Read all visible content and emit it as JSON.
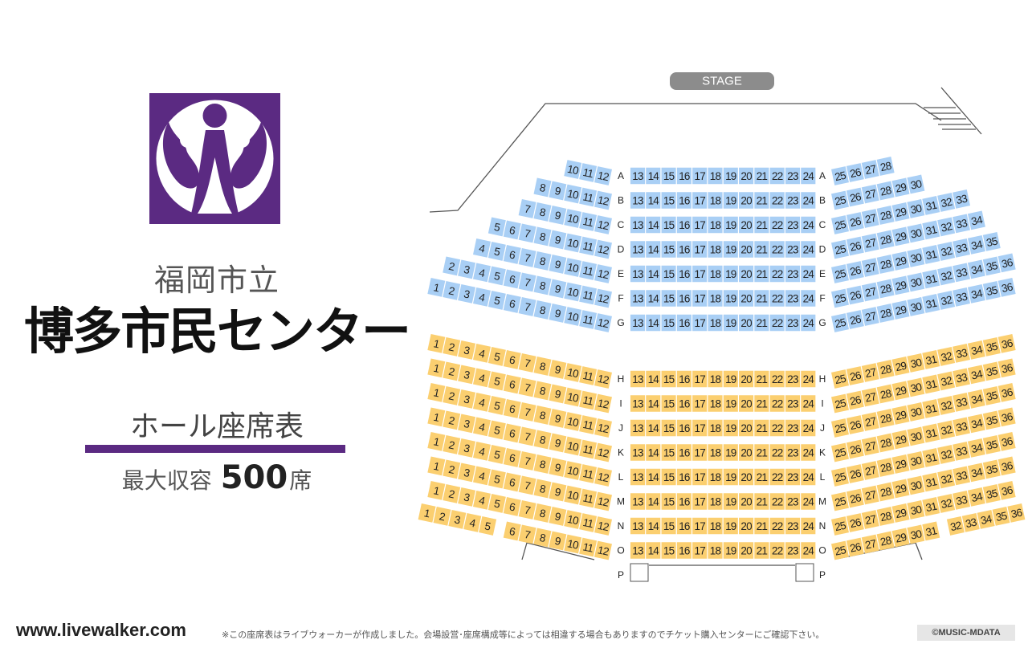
{
  "venue": {
    "name_prefix": "福岡市立",
    "name": "博多市民センター",
    "chart_title": "ホール座席表",
    "capacity_label": "最大収容",
    "capacity_value": "500",
    "capacity_unit": "席"
  },
  "stage": {
    "label": "STAGE"
  },
  "footer": {
    "site_url": "www.livewalker.com",
    "note": "※この座席表はライブウォーカーが作成しました。会場設営･座席構成等によっては相違する場合もありますのでチケット購入センターにご確認下さい。",
    "copyright": "©MUSIC-MDATA"
  },
  "colors": {
    "brand_purple": "#5b2a82",
    "upper_block_seat": "#a9cff5",
    "lower_block_seat": "#fbcf70",
    "stage_pill": "#8c8c8c",
    "outline": "#555555"
  },
  "seat_map": {
    "upper_block": {
      "rows": [
        {
          "row": "A",
          "left": [
            10,
            11,
            12
          ],
          "center": [
            13,
            14,
            15,
            16,
            17,
            18,
            19,
            20,
            21,
            22,
            23,
            24
          ],
          "right": [
            25,
            26,
            27,
            28
          ]
        },
        {
          "row": "B",
          "left": [
            8,
            9,
            10,
            11,
            12
          ],
          "center": [
            13,
            14,
            15,
            16,
            17,
            18,
            19,
            20,
            21,
            22,
            23,
            24
          ],
          "right": [
            25,
            26,
            27,
            28,
            29,
            30
          ]
        },
        {
          "row": "C",
          "left": [
            7,
            8,
            9,
            10,
            11,
            12
          ],
          "center": [
            13,
            14,
            15,
            16,
            17,
            18,
            19,
            20,
            21,
            22,
            23,
            24
          ],
          "right": [
            25,
            26,
            27,
            28,
            29,
            30,
            31,
            32,
            33
          ]
        },
        {
          "row": "D",
          "left": [
            5,
            6,
            7,
            8,
            9,
            10,
            11,
            12
          ],
          "center": [
            13,
            14,
            15,
            16,
            17,
            18,
            19,
            20,
            21,
            22,
            23,
            24
          ],
          "right": [
            25,
            26,
            27,
            28,
            29,
            30,
            31,
            32,
            33,
            34
          ]
        },
        {
          "row": "E",
          "left": [
            4,
            5,
            6,
            7,
            8,
            9,
            10,
            11,
            12
          ],
          "center": [
            13,
            14,
            15,
            16,
            17,
            18,
            19,
            20,
            21,
            22,
            23,
            24
          ],
          "right": [
            25,
            26,
            27,
            28,
            29,
            30,
            31,
            32,
            33,
            34,
            35
          ]
        },
        {
          "row": "F",
          "left": [
            2,
            3,
            4,
            5,
            6,
            7,
            8,
            9,
            10,
            11,
            12
          ],
          "center": [
            13,
            14,
            15,
            16,
            17,
            18,
            19,
            20,
            21,
            22,
            23,
            24
          ],
          "right": [
            25,
            26,
            27,
            28,
            29,
            30,
            31,
            32,
            33,
            34,
            35,
            36
          ]
        },
        {
          "row": "G",
          "left": [
            1,
            2,
            3,
            4,
            5,
            6,
            7,
            8,
            9,
            10,
            11,
            12
          ],
          "center": [
            13,
            14,
            15,
            16,
            17,
            18,
            19,
            20,
            21,
            22,
            23,
            24
          ],
          "right": [
            25,
            26,
            27,
            28,
            29,
            30,
            31,
            32,
            33,
            34,
            35,
            36
          ]
        }
      ]
    },
    "lower_block": {
      "rows": [
        {
          "row": "H",
          "left": [
            1,
            2,
            3,
            4,
            5,
            6,
            7,
            8,
            9,
            10,
            11,
            12
          ],
          "center": [
            13,
            14,
            15,
            16,
            17,
            18,
            19,
            20,
            21,
            22,
            23,
            24
          ],
          "right": [
            25,
            26,
            27,
            28,
            29,
            30,
            31,
            32,
            33,
            34,
            35,
            36
          ]
        },
        {
          "row": "I",
          "left": [
            1,
            2,
            3,
            4,
            5,
            6,
            7,
            8,
            9,
            10,
            11,
            12
          ],
          "center": [
            13,
            14,
            15,
            16,
            17,
            18,
            19,
            20,
            21,
            22,
            23,
            24
          ],
          "right": [
            25,
            26,
            27,
            28,
            29,
            30,
            31,
            32,
            33,
            34,
            35,
            36
          ]
        },
        {
          "row": "J",
          "left": [
            1,
            2,
            3,
            4,
            5,
            6,
            7,
            8,
            9,
            10,
            11,
            12
          ],
          "center": [
            13,
            14,
            15,
            16,
            17,
            18,
            19,
            20,
            21,
            22,
            23,
            24
          ],
          "right": [
            25,
            26,
            27,
            28,
            29,
            30,
            31,
            32,
            33,
            34,
            35,
            36
          ]
        },
        {
          "row": "K",
          "left": [
            1,
            2,
            3,
            4,
            5,
            6,
            7,
            8,
            9,
            10,
            11,
            12
          ],
          "center": [
            13,
            14,
            15,
            16,
            17,
            18,
            19,
            20,
            21,
            22,
            23,
            24
          ],
          "right": [
            25,
            26,
            27,
            28,
            29,
            30,
            31,
            32,
            33,
            34,
            35,
            36
          ]
        },
        {
          "row": "L",
          "left": [
            1,
            2,
            3,
            4,
            5,
            6,
            7,
            8,
            9,
            10,
            11,
            12
          ],
          "center": [
            13,
            14,
            15,
            16,
            17,
            18,
            19,
            20,
            21,
            22,
            23,
            24
          ],
          "right": [
            25,
            26,
            27,
            28,
            29,
            30,
            31,
            32,
            33,
            34,
            35,
            36
          ]
        },
        {
          "row": "M",
          "left": [
            1,
            2,
            3,
            4,
            5,
            6,
            7,
            8,
            9,
            10,
            11,
            12
          ],
          "center": [
            13,
            14,
            15,
            16,
            17,
            18,
            19,
            20,
            21,
            22,
            23,
            24
          ],
          "right": [
            25,
            26,
            27,
            28,
            29,
            30,
            31,
            32,
            33,
            34,
            35,
            36
          ]
        },
        {
          "row": "N",
          "left": [
            1,
            2,
            3,
            4,
            5,
            6,
            7,
            8,
            9,
            10,
            11,
            12
          ],
          "center": [
            13,
            14,
            15,
            16,
            17,
            18,
            19,
            20,
            21,
            22,
            23,
            24
          ],
          "right": [
            25,
            26,
            27,
            28,
            29,
            30,
            31,
            32,
            33,
            34,
            35,
            36
          ]
        },
        {
          "row": "O",
          "left": [
            1,
            2,
            3,
            4,
            5,
            6,
            7,
            8,
            9,
            10,
            11,
            12
          ],
          "center": [
            13,
            14,
            15,
            16,
            17,
            18,
            19,
            20,
            21,
            22,
            23,
            24
          ],
          "right": [
            25,
            26,
            27,
            28,
            29,
            30,
            31,
            32,
            33,
            34,
            35,
            36
          ]
        },
        {
          "row": "P",
          "left": [],
          "center": [],
          "right": []
        }
      ]
    },
    "notes": "Row O left block shows seats 1-5 (separate) then 6-12; row O right block shows 25-31 then 32-36 separately."
  }
}
